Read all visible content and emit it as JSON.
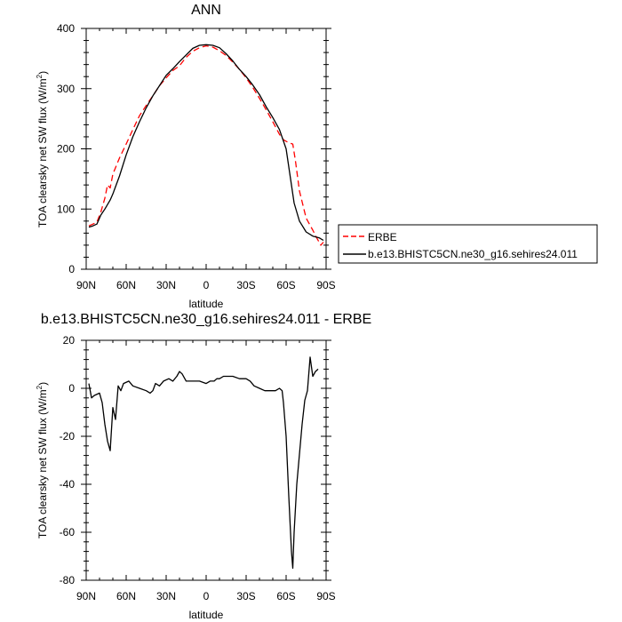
{
  "chart_data": [
    {
      "type": "line",
      "title": "ANN",
      "xlabel": "latitude",
      "ylabel": "TOA clearsky net SW flux (W/m",
      "ylabel_sup": "2",
      "ylabel_close": ")",
      "xlim": [
        90,
        -90
      ],
      "ylim": [
        0,
        400
      ],
      "x_ticks": [
        {
          "v": 90,
          "label": "90N"
        },
        {
          "v": 60,
          "label": "60N"
        },
        {
          "v": 30,
          "label": "30N"
        },
        {
          "v": 0,
          "label": "0"
        },
        {
          "v": -30,
          "label": "30S"
        },
        {
          "v": -60,
          "label": "60S"
        },
        {
          "v": -90,
          "label": "90S"
        }
      ],
      "y_ticks": [
        0,
        100,
        200,
        300,
        400
      ],
      "legend": [
        "ERBE",
        "b.e13.BHISTC5CN.ne30_g16.sehires24.011"
      ],
      "series": [
        {
          "name": "ERBE",
          "color": "#ff0000",
          "dash": true,
          "points": [
            [
              88,
              72
            ],
            [
              85,
              75
            ],
            [
              82,
              78
            ],
            [
              79,
              95
            ],
            [
              76,
              118
            ],
            [
              74,
              140
            ],
            [
              72,
              135
            ],
            [
              70,
              158
            ],
            [
              65,
              185
            ],
            [
              60,
              208
            ],
            [
              55,
              232
            ],
            [
              50,
              255
            ],
            [
              45,
              272
            ],
            [
              40,
              288
            ],
            [
              35,
              305
            ],
            [
              30,
              318
            ],
            [
              25,
              330
            ],
            [
              20,
              338
            ],
            [
              15,
              352
            ],
            [
              10,
              362
            ],
            [
              5,
              368
            ],
            [
              0,
              371
            ],
            [
              -5,
              369
            ],
            [
              -10,
              363
            ],
            [
              -15,
              355
            ],
            [
              -20,
              344
            ],
            [
              -25,
              332
            ],
            [
              -30,
              318
            ],
            [
              -35,
              302
            ],
            [
              -40,
              284
            ],
            [
              -45,
              265
            ],
            [
              -50,
              245
            ],
            [
              -55,
              224
            ],
            [
              -58,
              215
            ],
            [
              -62,
              210
            ],
            [
              -65,
              208
            ],
            [
              -67,
              180
            ],
            [
              -70,
              130
            ],
            [
              -75,
              85
            ],
            [
              -80,
              65
            ],
            [
              -83,
              52
            ],
            [
              -86,
              40
            ],
            [
              -88,
              45
            ]
          ]
        },
        {
          "name": "b.e13.BHISTC5CN.ne30_g16.sehires24.011",
          "color": "#000000",
          "dash": false,
          "points": [
            [
              88,
              70
            ],
            [
              85,
              72
            ],
            [
              82,
              75
            ],
            [
              79,
              90
            ],
            [
              76,
              100
            ],
            [
              72,
              115
            ],
            [
              70,
              125
            ],
            [
              65,
              155
            ],
            [
              60,
              190
            ],
            [
              55,
              220
            ],
            [
              50,
              245
            ],
            [
              45,
              268
            ],
            [
              40,
              288
            ],
            [
              35,
              305
            ],
            [
              30,
              322
            ],
            [
              25,
              333
            ],
            [
              20,
              345
            ],
            [
              15,
              356
            ],
            [
              10,
              367
            ],
            [
              5,
              372
            ],
            [
              0,
              373
            ],
            [
              -5,
              372
            ],
            [
              -10,
              368
            ],
            [
              -15,
              358
            ],
            [
              -20,
              346
            ],
            [
              -25,
              332
            ],
            [
              -30,
              320
            ],
            [
              -35,
              306
            ],
            [
              -40,
              290
            ],
            [
              -45,
              270
            ],
            [
              -50,
              252
            ],
            [
              -55,
              232
            ],
            [
              -60,
              200
            ],
            [
              -63,
              155
            ],
            [
              -66,
              110
            ],
            [
              -70,
              80
            ],
            [
              -75,
              62
            ],
            [
              -80,
              55
            ],
            [
              -85,
              52
            ],
            [
              -88,
              48
            ]
          ]
        }
      ]
    },
    {
      "type": "line",
      "title": "b.e13.BHISTC5CN.ne30_g16.sehires24.011 - ERBE",
      "xlabel": "latitude",
      "ylabel": "TOA clearsky net SW flux (W/m",
      "ylabel_sup": "2",
      "ylabel_close": ")",
      "xlim": [
        90,
        -90
      ],
      "ylim": [
        -80,
        20
      ],
      "x_ticks": [
        {
          "v": 90,
          "label": "90N"
        },
        {
          "v": 60,
          "label": "60N"
        },
        {
          "v": 30,
          "label": "30N"
        },
        {
          "v": 0,
          "label": "0"
        },
        {
          "v": -30,
          "label": "30S"
        },
        {
          "v": -60,
          "label": "60S"
        },
        {
          "v": -90,
          "label": "90S"
        }
      ],
      "y_ticks": [
        20,
        0,
        -20,
        -40,
        -60,
        -80
      ],
      "series": [
        {
          "color": "#000000",
          "dash": false,
          "points": [
            [
              88,
              2
            ],
            [
              86,
              -4
            ],
            [
              84,
              -3
            ],
            [
              80,
              -2
            ],
            [
              78,
              -6
            ],
            [
              76,
              -15
            ],
            [
              74,
              -22
            ],
            [
              72,
              -26
            ],
            [
              70,
              -8
            ],
            [
              68,
              -13
            ],
            [
              66,
              1
            ],
            [
              64,
              -1
            ],
            [
              62,
              2
            ],
            [
              58,
              3
            ],
            [
              55,
              1
            ],
            [
              50,
              0
            ],
            [
              45,
              -1
            ],
            [
              42,
              -2
            ],
            [
              40,
              -1
            ],
            [
              38,
              2
            ],
            [
              35,
              1
            ],
            [
              32,
              3
            ],
            [
              28,
              4
            ],
            [
              25,
              3
            ],
            [
              22,
              5
            ],
            [
              20,
              7
            ],
            [
              18,
              6
            ],
            [
              15,
              3
            ],
            [
              12,
              3
            ],
            [
              8,
              3
            ],
            [
              5,
              3
            ],
            [
              0,
              2
            ],
            [
              -3,
              3
            ],
            [
              -6,
              3
            ],
            [
              -8,
              4
            ],
            [
              -10,
              4
            ],
            [
              -13,
              5
            ],
            [
              -16,
              5
            ],
            [
              -20,
              5
            ],
            [
              -25,
              4
            ],
            [
              -30,
              4
            ],
            [
              -33,
              3
            ],
            [
              -36,
              1
            ],
            [
              -40,
              0
            ],
            [
              -44,
              -1
            ],
            [
              -48,
              -1
            ],
            [
              -52,
              -1
            ],
            [
              -55,
              0
            ],
            [
              -57,
              -1
            ],
            [
              -58,
              -6
            ],
            [
              -60,
              -20
            ],
            [
              -62,
              -45
            ],
            [
              -64,
              -68
            ],
            [
              -65,
              -75
            ],
            [
              -66,
              -60
            ],
            [
              -68,
              -40
            ],
            [
              -72,
              -15
            ],
            [
              -74,
              -5
            ],
            [
              -76,
              -1
            ],
            [
              -78,
              13
            ],
            [
              -80,
              5
            ],
            [
              -82,
              7
            ],
            [
              -84,
              8
            ]
          ]
        }
      ]
    }
  ]
}
